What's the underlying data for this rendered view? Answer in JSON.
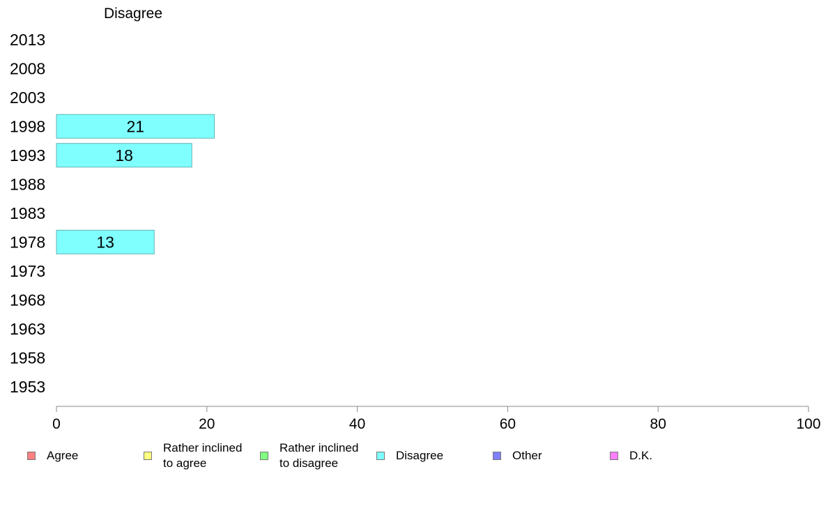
{
  "chart_data": {
    "type": "bar",
    "orientation": "horizontal",
    "title": "Disagree",
    "categories": [
      "2013",
      "2008",
      "2003",
      "1998",
      "1993",
      "1988",
      "1983",
      "1978",
      "1973",
      "1968",
      "1963",
      "1958",
      "1953"
    ],
    "series": [
      {
        "name": "Disagree",
        "color": "#80ffff",
        "values": [
          null,
          null,
          null,
          21,
          18,
          null,
          null,
          13,
          null,
          null,
          null,
          null,
          null
        ]
      }
    ],
    "data_labels": [
      "",
      "",
      "",
      "21",
      "18",
      "",
      "",
      "13",
      "",
      "",
      "",
      "",
      ""
    ],
    "xlim": [
      0,
      100
    ],
    "xticks": [
      0,
      20,
      40,
      60,
      80,
      100
    ],
    "xtick_labels": [
      "0",
      "20",
      "40",
      "60",
      "80",
      "100"
    ],
    "grid": false,
    "legend": {
      "placement": "bottom",
      "entries": [
        {
          "label": "Agree",
          "color": "#ff8080"
        },
        {
          "label": "Rather inclined\nto agree",
          "color": "#ffff80"
        },
        {
          "label": "Rather inclined\nto disagree",
          "color": "#80ff80"
        },
        {
          "label": "Disagree",
          "color": "#80ffff"
        },
        {
          "label": "Other",
          "color": "#8080ff"
        },
        {
          "label": "D.K.",
          "color": "#ff80ff"
        }
      ]
    }
  }
}
